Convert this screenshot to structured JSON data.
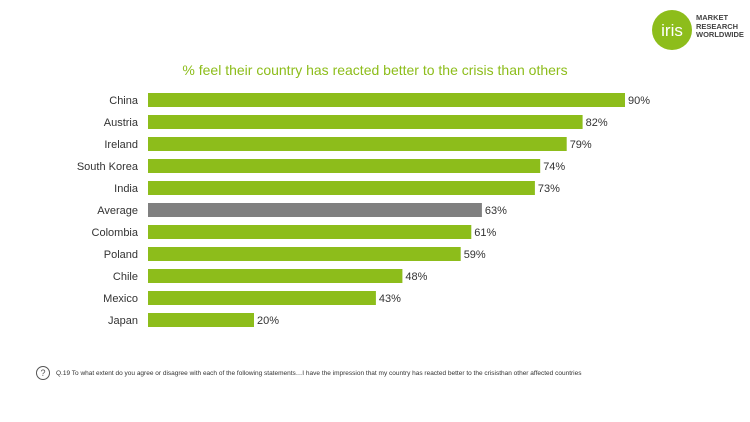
{
  "brand": {
    "logo_text": "iris",
    "lines": [
      "MARKET",
      "RESEARCH",
      "WORLDWIDE"
    ],
    "color": "#8dbd1b"
  },
  "footnote": {
    "icon": "question-circle-icon",
    "text": "Q.19 To what extent do you agree or disagree with each of the following statements…I have the impression that my country has reacted better to the crisisthan other affected countries"
  },
  "chart_data": {
    "type": "bar",
    "orientation": "horizontal",
    "title": "% feel their country has reacted better to the crisis than others",
    "categories": [
      "China",
      "Austria",
      "Ireland",
      "South Korea",
      "India",
      "Average",
      "Colombia",
      "Poland",
      "Chile",
      "Mexico",
      "Japan"
    ],
    "values": [
      90,
      82,
      79,
      74,
      73,
      63,
      61,
      59,
      48,
      43,
      20
    ],
    "value_labels": [
      "90%",
      "82%",
      "79%",
      "74%",
      "73%",
      "63%",
      "61%",
      "59%",
      "48%",
      "43%",
      "20%"
    ],
    "colors": {
      "default": "#8dbd1b",
      "highlight": "#808080"
    },
    "highlight_category": "Average",
    "xlim": [
      0,
      100
    ],
    "grid": false,
    "legend": "none"
  }
}
